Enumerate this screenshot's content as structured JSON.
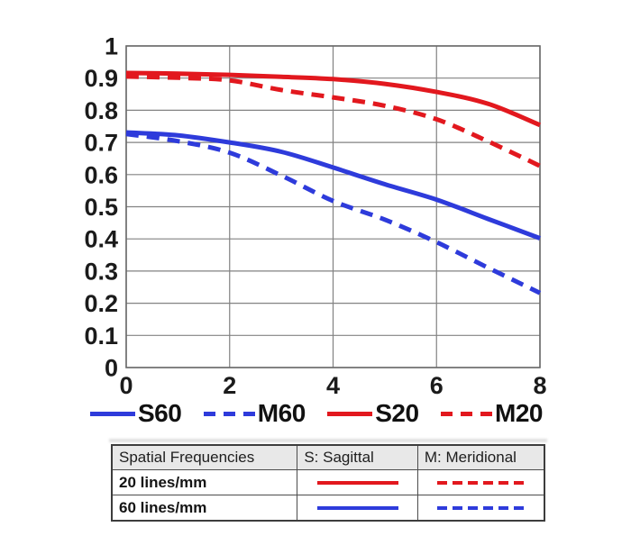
{
  "colors": {
    "red": "#e2181e",
    "blue": "#2e3bdb",
    "grid": "#828282",
    "axis_border": "#6a6a6a",
    "tick_text": "#1b1b1b",
    "table_header_bg": "#e8e8e8",
    "table_border": "#3d3d3d"
  },
  "chart_data": {
    "type": "line",
    "x": [
      0,
      1,
      2,
      3,
      4,
      5,
      6,
      7,
      8
    ],
    "xlim": [
      0,
      8
    ],
    "ylim": [
      0,
      1
    ],
    "x_tick_values": [
      0,
      2,
      4,
      6,
      8
    ],
    "x_tick_labels": [
      "0",
      "2",
      "4",
      "6",
      "8"
    ],
    "y_tick_values": [
      0,
      0.1,
      0.2,
      0.3,
      0.4,
      0.5,
      0.6,
      0.7,
      0.8,
      0.9,
      1
    ],
    "y_tick_labels": [
      "0",
      "0.1",
      "0.2",
      "0.3",
      "0.4",
      "0.5",
      "0.6",
      "0.7",
      "0.8",
      "0.9",
      "1"
    ],
    "grid": true,
    "legend_position": "bottom",
    "series": [
      {
        "name": "S60",
        "color_key": "blue",
        "style": "solid",
        "values": [
          0.731,
          0.722,
          0.7,
          0.671,
          0.622,
          0.57,
          0.522,
          0.462,
          0.402
        ]
      },
      {
        "name": "M60",
        "color_key": "blue",
        "style": "dashed",
        "values": [
          0.726,
          0.704,
          0.668,
          0.597,
          0.518,
          0.46,
          0.39,
          0.31,
          0.232
        ]
      },
      {
        "name": "S20",
        "color_key": "red",
        "style": "solid",
        "values": [
          0.916,
          0.914,
          0.91,
          0.904,
          0.897,
          0.882,
          0.857,
          0.82,
          0.754
        ]
      },
      {
        "name": "M20",
        "color_key": "red",
        "style": "dashed",
        "values": [
          0.905,
          0.901,
          0.893,
          0.863,
          0.84,
          0.814,
          0.772,
          0.703,
          0.627
        ]
      }
    ]
  },
  "table": {
    "headers": [
      "Spatial Frequencies",
      "S: Sagittal",
      "M: Meridional"
    ],
    "rows": [
      {
        "label": "20 lines/mm",
        "sagittal": "red-solid",
        "meridional": "red-dashed"
      },
      {
        "label": "60 lines/mm",
        "sagittal": "blue-solid",
        "meridional": "blue-dashed"
      }
    ]
  }
}
